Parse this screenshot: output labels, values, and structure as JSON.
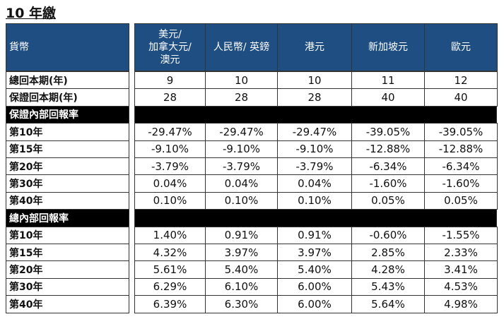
{
  "title": "10 年繳",
  "table": {
    "header": [
      [
        "貨幣"
      ],
      [
        "美元/",
        "加拿大元/",
        "澳元"
      ],
      [
        "人民幣/ 英鎊"
      ],
      [
        "港元"
      ],
      [
        "新加坡元"
      ],
      [
        "歐元"
      ]
    ],
    "rows": [
      {
        "label": "總回本期(年)",
        "values": [
          "9",
          "10",
          "10",
          "11",
          "12"
        ]
      },
      {
        "label": "保證回本期(年)",
        "values": [
          "28",
          "28",
          "28",
          "40",
          "40"
        ]
      },
      {
        "label": "保證內部回報率"
      },
      {
        "label": "第10年",
        "values": [
          "-29.47%",
          "-29.47%",
          "-29.47%",
          "-39.05%",
          "-39.05%"
        ]
      },
      {
        "label": "第15年",
        "values": [
          "-9.10%",
          "-9.10%",
          "-9.10%",
          "-12.88%",
          "-12.88%"
        ]
      },
      {
        "label": "第20年",
        "values": [
          "-3.79%",
          "-3.79%",
          "-3.79%",
          "-6.34%",
          "-6.34%"
        ]
      },
      {
        "label": "第30年",
        "values": [
          "0.04%",
          "0.04%",
          "0.04%",
          "-1.60%",
          "-1.60%"
        ]
      },
      {
        "label": "第40年",
        "values": [
          "0.10%",
          "0.10%",
          "0.10%",
          "0.05%",
          "0.05%"
        ]
      },
      {
        "label": "總內部回報率"
      },
      {
        "label": "第10年",
        "values": [
          "1.40%",
          "0.91%",
          "0.91%",
          "-0.60%",
          "-1.55%"
        ]
      },
      {
        "label": "第15年",
        "values": [
          "4.32%",
          "3.97%",
          "3.97%",
          "2.85%",
          "2.33%"
        ]
      },
      {
        "label": "第20年",
        "values": [
          "5.61%",
          "5.40%",
          "5.40%",
          "4.28%",
          "3.41%"
        ]
      },
      {
        "label": "第30年",
        "values": [
          "6.29%",
          "6.10%",
          "6.00%",
          "5.43%",
          "4.53%"
        ]
      },
      {
        "label": "第40年",
        "values": [
          "6.39%",
          "6.30%",
          "6.00%",
          "5.64%",
          "4.98%"
        ]
      }
    ]
  }
}
